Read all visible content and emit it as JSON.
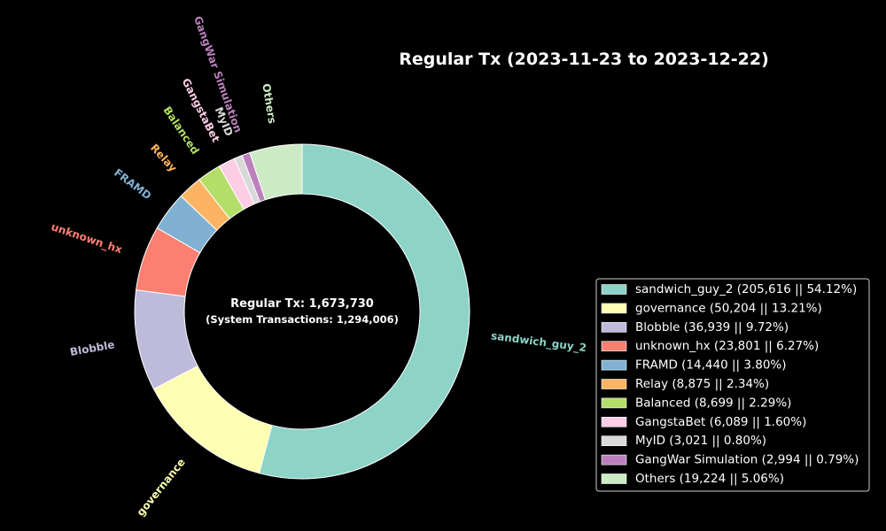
{
  "chart_data": {
    "type": "pie",
    "title": "Regular Tx (2023-11-23 to 2023-12-22)",
    "center_text": {
      "line1": "Regular Tx: 1,673,730",
      "line2": "(System Transactions: 1,294,006)"
    },
    "slices": [
      {
        "label": "sandwich_guy_2",
        "value": 205616,
        "percent": 54.12,
        "color": "#8dd3c7",
        "legend": "sandwich_guy_2 (205,616 || 54.12%)"
      },
      {
        "label": "governance",
        "value": 50204,
        "percent": 13.21,
        "color": "#ffffb3",
        "legend": "governance (50,204 || 13.21%)"
      },
      {
        "label": "Blobble",
        "value": 36939,
        "percent": 9.72,
        "color": "#bebada",
        "legend": "Blobble (36,939 || 9.72%)"
      },
      {
        "label": "unknown_hx",
        "value": 23801,
        "percent": 6.27,
        "color": "#fb8072",
        "legend": "unknown_hx (23,801 || 6.27%)"
      },
      {
        "label": "FRAMD",
        "value": 14440,
        "percent": 3.8,
        "color": "#80b1d3",
        "legend": "FRAMD (14,440 || 3.80%)"
      },
      {
        "label": "Relay",
        "value": 8875,
        "percent": 2.34,
        "color": "#fdb462",
        "legend": "Relay (8,875 || 2.34%)"
      },
      {
        "label": "Balanced",
        "value": 8699,
        "percent": 2.29,
        "color": "#b3de69",
        "legend": "Balanced (8,699 || 2.29%)"
      },
      {
        "label": "GangstaBet",
        "value": 6089,
        "percent": 1.6,
        "color": "#fccde5",
        "legend": "GangstaBet (6,089 || 1.60%)"
      },
      {
        "label": "MyID",
        "value": 3021,
        "percent": 0.8,
        "color": "#d9d9d9",
        "legend": "MyID (3,021 || 0.80%)"
      },
      {
        "label": "GangWar Simulation",
        "value": 2994,
        "percent": 0.79,
        "color": "#bc80bd",
        "legend": "GangWar Simulation (2,994 || 0.79%)"
      },
      {
        "label": "Others",
        "value": 19224,
        "percent": 5.06,
        "color": "#ccebc5",
        "legend": "Others (19,224 || 5.06%)"
      }
    ],
    "start_angle": "top",
    "direction": "clockwise",
    "legend_position": "right",
    "style": "donut"
  }
}
